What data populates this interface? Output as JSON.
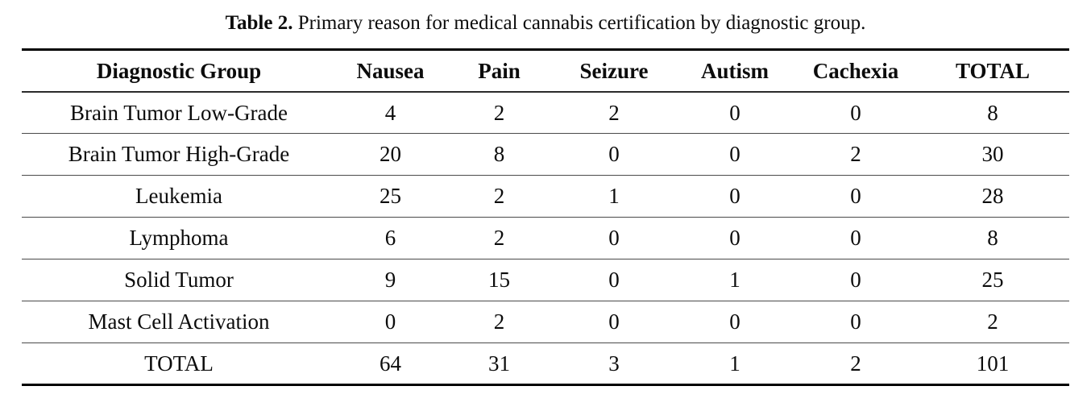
{
  "caption": {
    "label": "Table 2.",
    "text": " Primary reason for medical cannabis certification by diagnostic group."
  },
  "table": {
    "columns": [
      "Diagnostic Group",
      "Nausea",
      "Pain",
      "Seizure",
      "Autism",
      "Cachexia",
      "TOTAL"
    ],
    "rows": [
      {
        "group": "Brain Tumor Low-Grade",
        "values": [
          "4",
          "2",
          "2",
          "0",
          "0",
          "8"
        ]
      },
      {
        "group": "Brain Tumor High-Grade",
        "values": [
          "20",
          "8",
          "0",
          "0",
          "2",
          "30"
        ]
      },
      {
        "group": "Leukemia",
        "values": [
          "25",
          "2",
          "1",
          "0",
          "0",
          "28"
        ]
      },
      {
        "group": "Lymphoma",
        "values": [
          "6",
          "2",
          "0",
          "0",
          "0",
          "8"
        ]
      },
      {
        "group": "Solid Tumor",
        "values": [
          "9",
          "15",
          "0",
          "1",
          "0",
          "25"
        ]
      },
      {
        "group": "Mast Cell Activation",
        "values": [
          "0",
          "2",
          "0",
          "0",
          "0",
          "2"
        ]
      },
      {
        "group": "TOTAL",
        "values": [
          "64",
          "31",
          "3",
          "1",
          "2",
          "101"
        ]
      }
    ]
  },
  "chart_data": {
    "type": "table",
    "title": "Table 2. Primary reason for medical cannabis certification by diagnostic group.",
    "columns": [
      "Diagnostic Group",
      "Nausea",
      "Pain",
      "Seizure",
      "Autism",
      "Cachexia",
      "TOTAL"
    ],
    "rows": [
      [
        "Brain Tumor Low-Grade",
        4,
        2,
        2,
        0,
        0,
        8
      ],
      [
        "Brain Tumor High-Grade",
        20,
        8,
        0,
        0,
        2,
        30
      ],
      [
        "Leukemia",
        25,
        2,
        1,
        0,
        0,
        28
      ],
      [
        "Lymphoma",
        6,
        2,
        0,
        0,
        0,
        8
      ],
      [
        "Solid Tumor",
        9,
        15,
        0,
        1,
        0,
        25
      ],
      [
        "Mast Cell Activation",
        0,
        2,
        0,
        0,
        0,
        2
      ],
      [
        "TOTAL",
        64,
        31,
        3,
        1,
        2,
        101
      ]
    ],
    "colors": {
      "text": "#0c0c0c",
      "thick_rule": "#000000",
      "thin_rule": "#4a4a4a",
      "background": "#ffffff"
    }
  }
}
